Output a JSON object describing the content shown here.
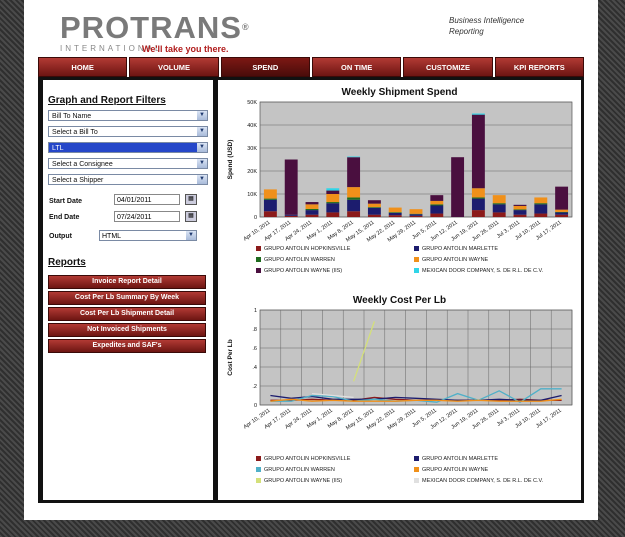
{
  "brand": {
    "name": "PROTRANS",
    "reg": "®",
    "sub": "INTERNATIONAL",
    "tagline": "We'll take you there."
  },
  "app": {
    "line1": "Business Intelligence",
    "line2": "Reporting"
  },
  "nav": [
    {
      "label": "HOME",
      "active": false
    },
    {
      "label": "VOLUME",
      "active": false
    },
    {
      "label": "SPEND",
      "active": true
    },
    {
      "label": "ON TIME",
      "active": false
    },
    {
      "label": "CUSTOMIZE",
      "active": false
    },
    {
      "label": "KPI REPORTS",
      "active": false
    }
  ],
  "filters": {
    "heading": "Graph and Report Filters",
    "bill_to_name": "Bill To Name",
    "bill_to": "Select a Bill To",
    "mode": "LTL",
    "consignee": "Select a Consignee",
    "shipper": "Select a Shipper",
    "start_label": "Start Date",
    "start_value": "04/01/2011",
    "end_label": "End Date",
    "end_value": "07/24/2011",
    "output_label": "Output",
    "output_value": "HTML"
  },
  "reports": {
    "heading": "Reports",
    "buttons": [
      "Invoice Report Detail",
      "Cost Per Lb Summary By Week",
      "Cost Per Lb Shipment Detail",
      "Not Invoiced Shipments",
      "Expedites and SAF's"
    ]
  },
  "colors": {
    "accent": "#8b1f1a",
    "plot_bg": "#c4c4c4"
  },
  "chart_data": [
    {
      "type": "bar",
      "stacked": true,
      "title": "Weekly Shipment Spend",
      "ylabel": "Spend (USD)",
      "xlabel": "",
      "ylim": [
        0,
        50000
      ],
      "yticks": [
        "0",
        "10K",
        "20K",
        "30K",
        "40K",
        "50K"
      ],
      "grid": true,
      "legend_position": "bottom",
      "categories": [
        "Apr 10, 2011",
        "Apr 17, 2011",
        "Apr 24, 2011",
        "May 1, 2011",
        "May 8, 2011",
        "May 15, 2011",
        "May 22, 2011",
        "May 29, 2011",
        "Jun 5, 2011",
        "Jun 12, 2011",
        "Jun 19, 2011",
        "Jun 26, 2011",
        "Jul 3, 2011",
        "Jul 10, 2011",
        "Jul 17, 2011"
      ],
      "series": [
        {
          "name": "GRUPO ANTOLIN HOPKINSVILLE",
          "color": "#8b1a1a",
          "values": [
            2500,
            500,
            1000,
            2000,
            2500,
            1000,
            800,
            500,
            1500,
            0,
            3000,
            2000,
            1000,
            1500,
            1000
          ]
        },
        {
          "name": "GRUPO ANTOLIN MARLETTE",
          "color": "#1c1c6e",
          "values": [
            5000,
            500,
            2000,
            4000,
            5000,
            3000,
            1000,
            700,
            3500,
            0,
            5000,
            3500,
            2000,
            4000,
            1000
          ]
        },
        {
          "name": "GRUPO ANTOLIN WARREN",
          "color": "#1e6b1e",
          "values": [
            500,
            0,
            500,
            500,
            1000,
            300,
            300,
            200,
            500,
            0,
            500,
            500,
            300,
            500,
            200
          ]
        },
        {
          "name": "GRUPO ANTOLIN WAYNE",
          "color": "#f0901a",
          "values": [
            4000,
            0,
            2000,
            3500,
            4500,
            1500,
            2000,
            2000,
            1500,
            0,
            4000,
            3500,
            1500,
            2500,
            1000
          ]
        },
        {
          "name": "GRUPO ANTOLIN WAYNE (IIS)",
          "color": "#4a0f3f",
          "values": [
            0,
            24000,
            1000,
            1500,
            13000,
            1500,
            0,
            0,
            2500,
            26000,
            32000,
            0,
            500,
            0,
            10000
          ]
        },
        {
          "name": "MEXICAN DOOR COMPANY, S. DE R.L. DE C.V.",
          "color": "#30d5e8",
          "values": [
            0,
            0,
            0,
            1000,
            300,
            0,
            0,
            0,
            0,
            0,
            500,
            0,
            0,
            0,
            0
          ]
        }
      ]
    },
    {
      "type": "line",
      "title": "Weekly Cost Per Lb",
      "ylabel": "Cost Per Lb",
      "xlabel": "",
      "ylim": [
        0,
        1
      ],
      "yticks": [
        "0",
        ".2",
        ".4",
        ".6",
        ".8",
        "1"
      ],
      "grid": true,
      "legend_position": "bottom",
      "categories": [
        "Apr 10, 2011",
        "Apr 17, 2011",
        "Apr 24, 2011",
        "May 1, 2011",
        "May 8, 2011",
        "May 15, 2011",
        "May 22, 2011",
        "May 29, 2011",
        "Jun 5, 2011",
        "Jun 12, 2011",
        "Jun 19, 2011",
        "Jun 26, 2011",
        "Jul 3, 2011",
        "Jul 10, 2011",
        "Jul 17, 2011"
      ],
      "series": [
        {
          "name": "GRUPO ANTOLIN HOPKINSVILLE",
          "color": "#8b1a1a",
          "values": [
            0.05,
            0.05,
            0.06,
            0.05,
            0.05,
            0.08,
            0.06,
            0.05,
            0.05,
            0.05,
            0.05,
            0.05,
            0.06,
            0.05,
            0.05
          ]
        },
        {
          "name": "GRUPO ANTOLIN MARLETTE",
          "color": "#1c1c6e",
          "values": [
            0.1,
            0.07,
            0.09,
            0.06,
            0.06,
            0.06,
            0.08,
            0.07,
            0.06,
            0.05,
            0.05,
            0.06,
            0.05,
            0.05,
            0.1
          ]
        },
        {
          "name": "GRUPO ANTOLIN WARREN",
          "color": "#4fb0c8",
          "values": [
            0.04,
            0.04,
            0.1,
            0.09,
            0.04,
            0.06,
            0.04,
            0.05,
            0.03,
            0.12,
            0.05,
            0.15,
            0.03,
            0.17,
            0.17
          ]
        },
        {
          "name": "GRUPO ANTOLIN WAYNE",
          "color": "#f0901a",
          "values": [
            0.04,
            0.06,
            0.04,
            0.05,
            0.04,
            0.04,
            0.04,
            0.05,
            0.05,
            0.04,
            0.05,
            0.04,
            0.04,
            0.04,
            0.06
          ]
        },
        {
          "name": "GRUPO ANTOLIN WAYNE (IIS)",
          "color": "#d4e07a",
          "values": [
            null,
            null,
            null,
            null,
            0.25,
            0.88,
            null,
            null,
            null,
            null,
            null,
            null,
            null,
            null,
            null
          ]
        },
        {
          "name": "MEXICAN DOOR COMPANY, S. DE R.L. DE C.V.",
          "color": "#e0e0e0",
          "values": [
            null,
            null,
            0.12,
            0.1,
            0.08,
            null,
            null,
            null,
            null,
            null,
            null,
            null,
            null,
            null,
            null
          ]
        }
      ]
    }
  ]
}
